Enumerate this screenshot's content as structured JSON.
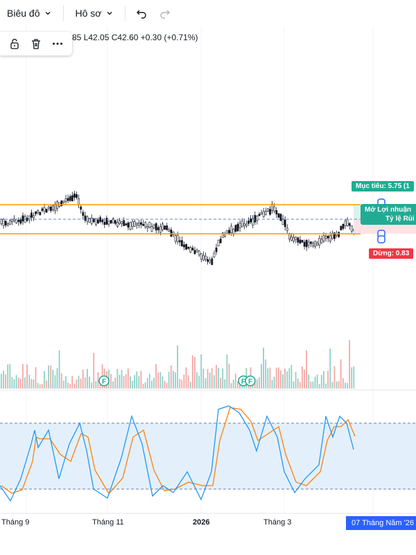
{
  "toolbar": {
    "chart_menu": "Biêu đô",
    "profile_menu": "Hô sơ",
    "undo_icon": "undo-icon",
    "redo_icon": "redo-icon"
  },
  "ohlc": {
    "text": "85  L42.05  C42.60  +0.30 (+0.71%)"
  },
  "floating_tools": [
    "unlock-icon",
    "trash-icon",
    "more-icon"
  ],
  "position_tool": {
    "target_label": "Mục tiêu: 5.75 (1",
    "pl_line1": "Mở Lợi nhuận",
    "pl_line2": "Tỷ lệ Rủi",
    "stop_label": "Dừng: 0.83"
  },
  "markers": [
    "F",
    "F",
    "F"
  ],
  "xaxis": {
    "labels": [
      "Tháng 9",
      "Tháng 11",
      "2026",
      "Tháng 3"
    ],
    "current_date": "07 Tháng Năm '26"
  },
  "colors": {
    "up": "#26a69a",
    "down": "#ef5350",
    "candle": "#131722",
    "orange": "#ff9800",
    "stoch_k": "#2196f3",
    "stoch_d": "#ff7f0e",
    "stoch_band": "#e3f0fb",
    "accent": "#2962ff"
  }
}
